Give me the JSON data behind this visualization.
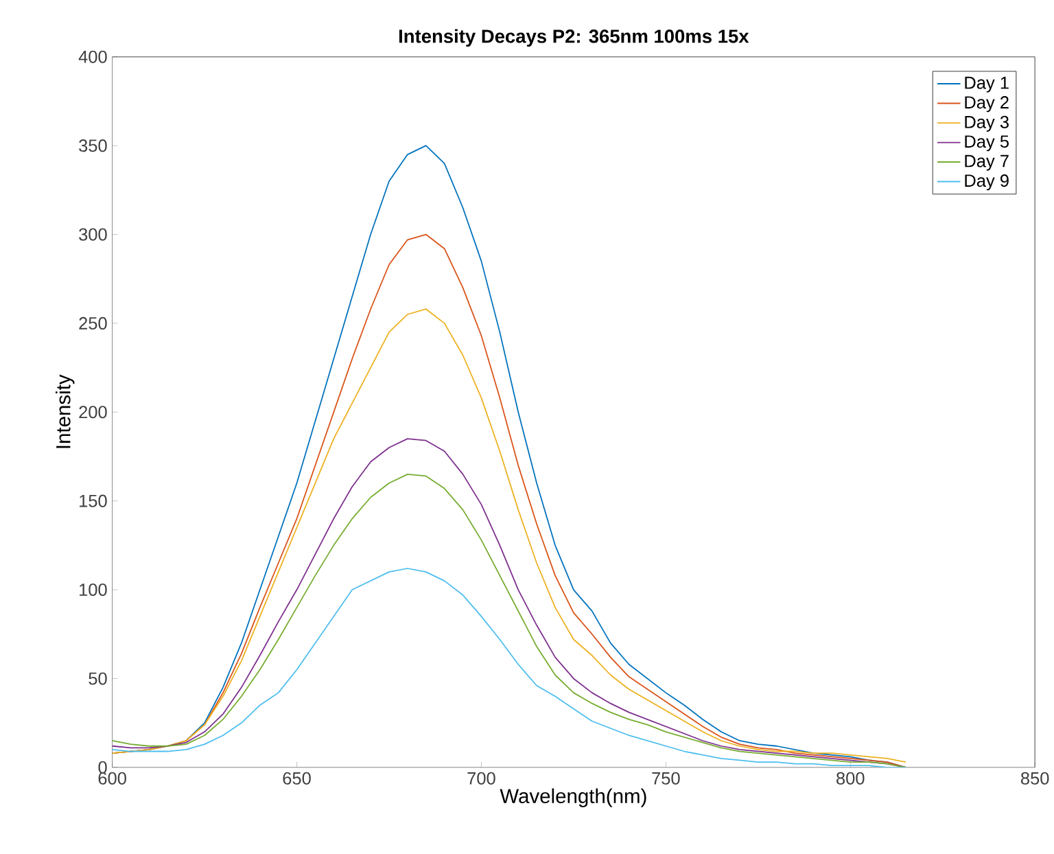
{
  "chart_data": {
    "type": "line",
    "title": "Intensity Decays P2: 365nm 100ms 15x",
    "xlabel": "Wavelength(nm)",
    "ylabel": "Intensity",
    "x": [
      600,
      605,
      610,
      615,
      620,
      625,
      630,
      635,
      640,
      645,
      650,
      655,
      660,
      665,
      670,
      675,
      680,
      685,
      690,
      695,
      700,
      705,
      710,
      715,
      720,
      725,
      730,
      735,
      740,
      745,
      750,
      755,
      760,
      765,
      770,
      775,
      780,
      785,
      790,
      795,
      800,
      805,
      810,
      815
    ],
    "series": [
      {
        "name": "Day 1",
        "color": "#0072bd",
        "values": [
          8,
          9,
          10,
          12,
          15,
          25,
          45,
          70,
          100,
          130,
          160,
          195,
          230,
          265,
          300,
          330,
          345,
          350,
          340,
          315,
          285,
          245,
          200,
          160,
          125,
          100,
          88,
          70,
          58,
          50,
          42,
          35,
          27,
          20,
          15,
          13,
          12,
          10,
          8,
          7,
          6,
          4,
          3,
          0
        ]
      },
      {
        "name": "Day 2",
        "color": "#d95319",
        "values": [
          8,
          9,
          10,
          12,
          15,
          24,
          42,
          64,
          90,
          115,
          140,
          170,
          200,
          230,
          258,
          283,
          297,
          300,
          292,
          270,
          243,
          208,
          170,
          137,
          108,
          87,
          75,
          62,
          51,
          44,
          37,
          30,
          23,
          17,
          13,
          11,
          10,
          8,
          7,
          6,
          5,
          4,
          3,
          0
        ]
      },
      {
        "name": "Day 3",
        "color": "#edb120",
        "values": [
          8,
          9,
          10,
          12,
          15,
          24,
          40,
          60,
          85,
          110,
          135,
          160,
          185,
          205,
          225,
          245,
          255,
          258,
          250,
          232,
          208,
          178,
          145,
          115,
          90,
          72,
          63,
          52,
          44,
          38,
          32,
          26,
          20,
          15,
          12,
          10,
          9,
          9,
          8,
          8,
          7,
          6,
          5,
          3
        ]
      },
      {
        "name": "Day 5",
        "color": "#7e2f8e",
        "values": [
          12,
          11,
          11,
          12,
          14,
          20,
          30,
          45,
          63,
          82,
          100,
          120,
          140,
          158,
          172,
          180,
          185,
          184,
          178,
          165,
          148,
          125,
          100,
          80,
          62,
          50,
          42,
          36,
          31,
          27,
          23,
          19,
          15,
          12,
          10,
          9,
          8,
          7,
          6,
          5,
          4,
          3,
          2,
          0
        ]
      },
      {
        "name": "Day 7",
        "color": "#77ac30",
        "values": [
          15,
          13,
          12,
          12,
          13,
          18,
          27,
          40,
          55,
          72,
          90,
          108,
          125,
          140,
          152,
          160,
          165,
          164,
          157,
          145,
          128,
          108,
          88,
          68,
          52,
          42,
          36,
          31,
          27,
          24,
          20,
          17,
          14,
          11,
          9,
          8,
          7,
          6,
          5,
          4,
          3,
          3,
          2,
          0
        ]
      },
      {
        "name": "Day 9",
        "color": "#4dbeee",
        "values": [
          10,
          9,
          9,
          9,
          10,
          13,
          18,
          25,
          35,
          42,
          55,
          70,
          85,
          100,
          105,
          110,
          112,
          110,
          105,
          97,
          85,
          72,
          58,
          46,
          40,
          33,
          26,
          22,
          18,
          15,
          12,
          9,
          7,
          5,
          4,
          3,
          3,
          2,
          2,
          1,
          1,
          1,
          0,
          0
        ]
      }
    ],
    "xlim": [
      600,
      850
    ],
    "xticks": [
      600,
      650,
      700,
      750,
      800,
      850
    ],
    "ylim": [
      0,
      400
    ],
    "yticks": [
      0,
      50,
      100,
      150,
      200,
      250,
      300,
      350,
      400
    ],
    "legend": "top right",
    "grid": false
  }
}
